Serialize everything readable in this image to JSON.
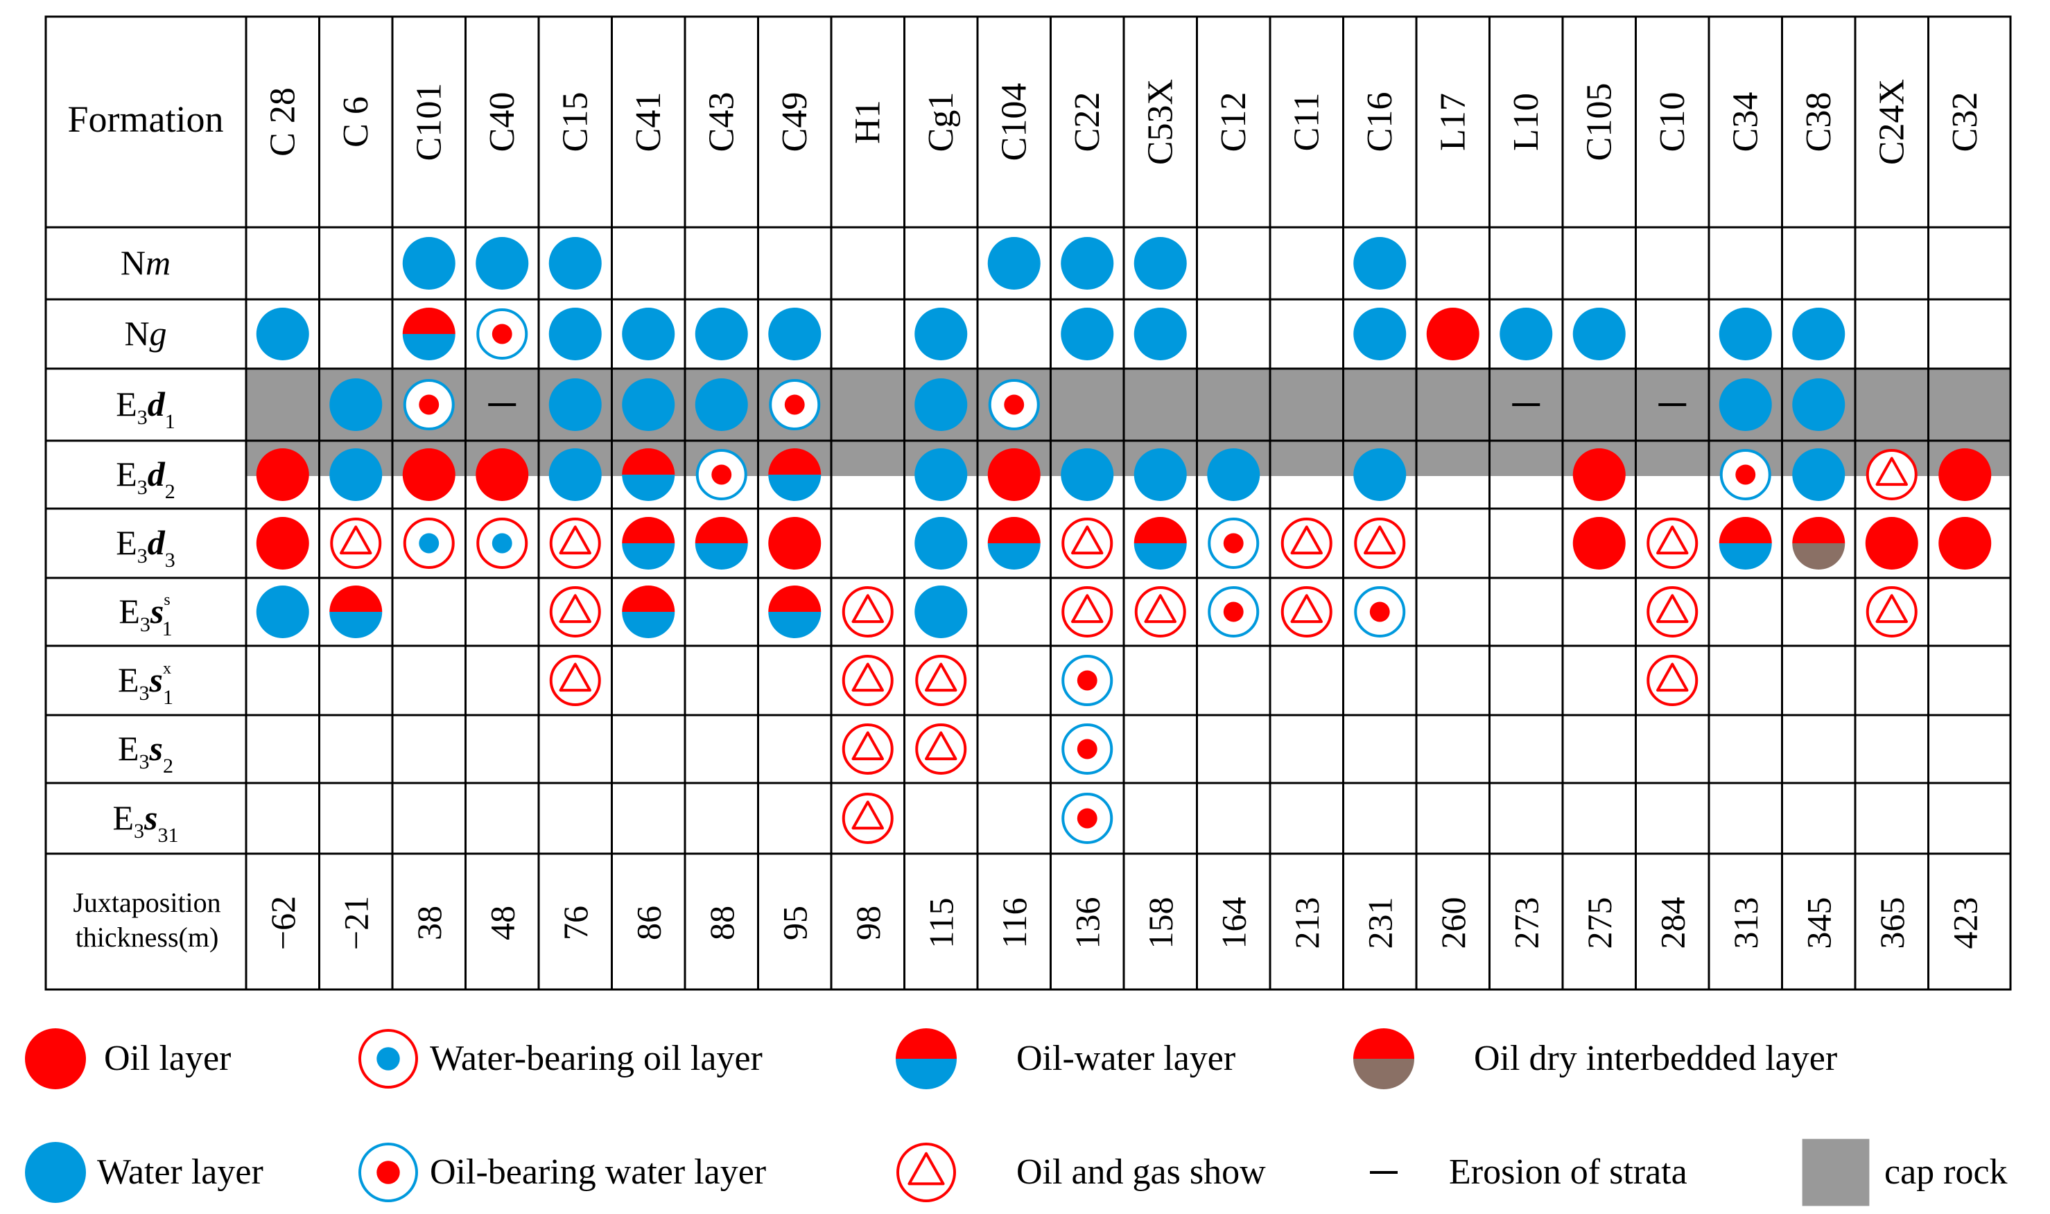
{
  "colors": {
    "oil": "#ff0000",
    "water": "#0099dd",
    "dry": "#8a7065",
    "cap": "#999999",
    "line": "#000000"
  },
  "chart_data": {
    "type": "table",
    "title": "",
    "header_label": "Formation",
    "footer_label_line1": "Juxtaposition",
    "footer_label_line2": "thickness(m)",
    "wells": [
      "C 28",
      "C 6",
      "C101",
      "C40",
      "C15",
      "C41",
      "C43",
      "C49",
      "H1",
      "Cg1",
      "C104",
      "C22",
      "C53X",
      "C12",
      "C11",
      "C16",
      "L17",
      "L10",
      "C105",
      "C10",
      "C34",
      "C38",
      "C24X",
      "C32"
    ],
    "thickness": [
      "−62",
      "−21",
      "38",
      "48",
      "76",
      "86",
      "88",
      "95",
      "98",
      "115",
      "116",
      "136",
      "158",
      "164",
      "213",
      "231",
      "260",
      "273",
      "275",
      "284",
      "313",
      "345",
      "365",
      "423"
    ],
    "formations": [
      {
        "base": "N",
        "italic": "m",
        "sub": "",
        "sup": ""
      },
      {
        "base": "N",
        "italic": "g",
        "sub": "",
        "sup": ""
      },
      {
        "base": "E",
        "sub0": "3",
        "italic": "d",
        "sub": "1",
        "sup": ""
      },
      {
        "base": "E",
        "sub0": "3",
        "italic": "d",
        "sub": "2",
        "sup": ""
      },
      {
        "base": "E",
        "sub0": "3",
        "italic": "d",
        "sub": "3",
        "sup": ""
      },
      {
        "base": "E",
        "sub0": "3",
        "italic": "s",
        "sub": "1",
        "sup": "s"
      },
      {
        "base": "E",
        "sub0": "3",
        "italic": "s",
        "sub": "1",
        "sup": "x"
      },
      {
        "base": "E",
        "sub0": "3",
        "italic": "s",
        "sub": "2",
        "sup": ""
      },
      {
        "base": "E",
        "sub0": "3",
        "italic": "s",
        "sub": "31",
        "sup": ""
      }
    ],
    "cap_rock_rows": [
      2,
      3
    ],
    "cells": [
      [
        "",
        "",
        "W",
        "W",
        "W",
        "",
        "",
        "",
        "",
        "",
        "W",
        "W",
        "W",
        "",
        "",
        "W",
        "",
        "",
        "",
        "",
        "",
        "",
        "",
        ""
      ],
      [
        "W",
        "",
        "OW",
        "OBW",
        "W",
        "W",
        "W",
        "W",
        "",
        "W",
        "",
        "W",
        "W",
        "",
        "",
        "W",
        "O",
        "W",
        "W",
        "",
        "W",
        "W",
        "",
        ""
      ],
      [
        "",
        "W",
        "OBW",
        "E",
        "W",
        "W",
        "W",
        "OBW",
        "",
        "W",
        "OBW",
        "",
        "",
        "",
        "",
        "",
        "",
        "E",
        "",
        "E",
        "W",
        "W",
        "",
        ""
      ],
      [
        "O",
        "W",
        "O",
        "O",
        "W",
        "OW",
        "OBW",
        "OW",
        "",
        "W",
        "O",
        "W",
        "W",
        "W",
        "",
        "W",
        "",
        "",
        "O",
        "",
        "OBW",
        "W",
        "S",
        "O"
      ],
      [
        "O",
        "S",
        "WBO",
        "WBO",
        "S",
        "OW",
        "OW",
        "O",
        "",
        "W",
        "OW",
        "S",
        "OW",
        "OBW",
        "S",
        "S",
        "",
        "",
        "O",
        "S",
        "OW",
        "OD",
        "O",
        "O"
      ],
      [
        "W",
        "OW",
        "",
        "",
        "S",
        "OW",
        "",
        "OW",
        "S",
        "W",
        "",
        "S",
        "S",
        "OBW",
        "S",
        "OBW",
        "",
        "",
        "",
        "S",
        "",
        "",
        "S",
        ""
      ],
      [
        "",
        "",
        "",
        "",
        "S",
        "",
        "",
        "",
        "S",
        "S",
        "",
        "OBW",
        "",
        "",
        "",
        "",
        "",
        "",
        "",
        "S",
        "",
        "",
        "",
        ""
      ],
      [
        "",
        "",
        "",
        "",
        "",
        "",
        "",
        "",
        "S",
        "S",
        "",
        "OBW",
        "",
        "",
        "",
        "",
        "",
        "",
        "",
        "",
        "",
        "",
        "",
        ""
      ],
      [
        "",
        "",
        "",
        "",
        "",
        "",
        "",
        "",
        "S",
        "",
        "",
        "OBW",
        "",
        "",
        "",
        "",
        "",
        "",
        "",
        "",
        "",
        "",
        "",
        ""
      ]
    ],
    "legend": [
      {
        "symbol": "O",
        "label": "Oil  layer"
      },
      {
        "symbol": "WBO",
        "label": "Water-bearing oil layer"
      },
      {
        "symbol": "OW",
        "label": "Oil-water layer"
      },
      {
        "symbol": "OD",
        "label": "Oil  dry  interbedded  layer"
      },
      {
        "symbol": "W",
        "label": "Water  layer"
      },
      {
        "symbol": "OBW",
        "label": "Oil-bearing water layer"
      },
      {
        "symbol": "S",
        "label": "Oil and gas show"
      },
      {
        "symbol": "E",
        "label": "Erosion of strata"
      },
      {
        "symbol": "CAP",
        "label": "cap rock"
      }
    ]
  }
}
